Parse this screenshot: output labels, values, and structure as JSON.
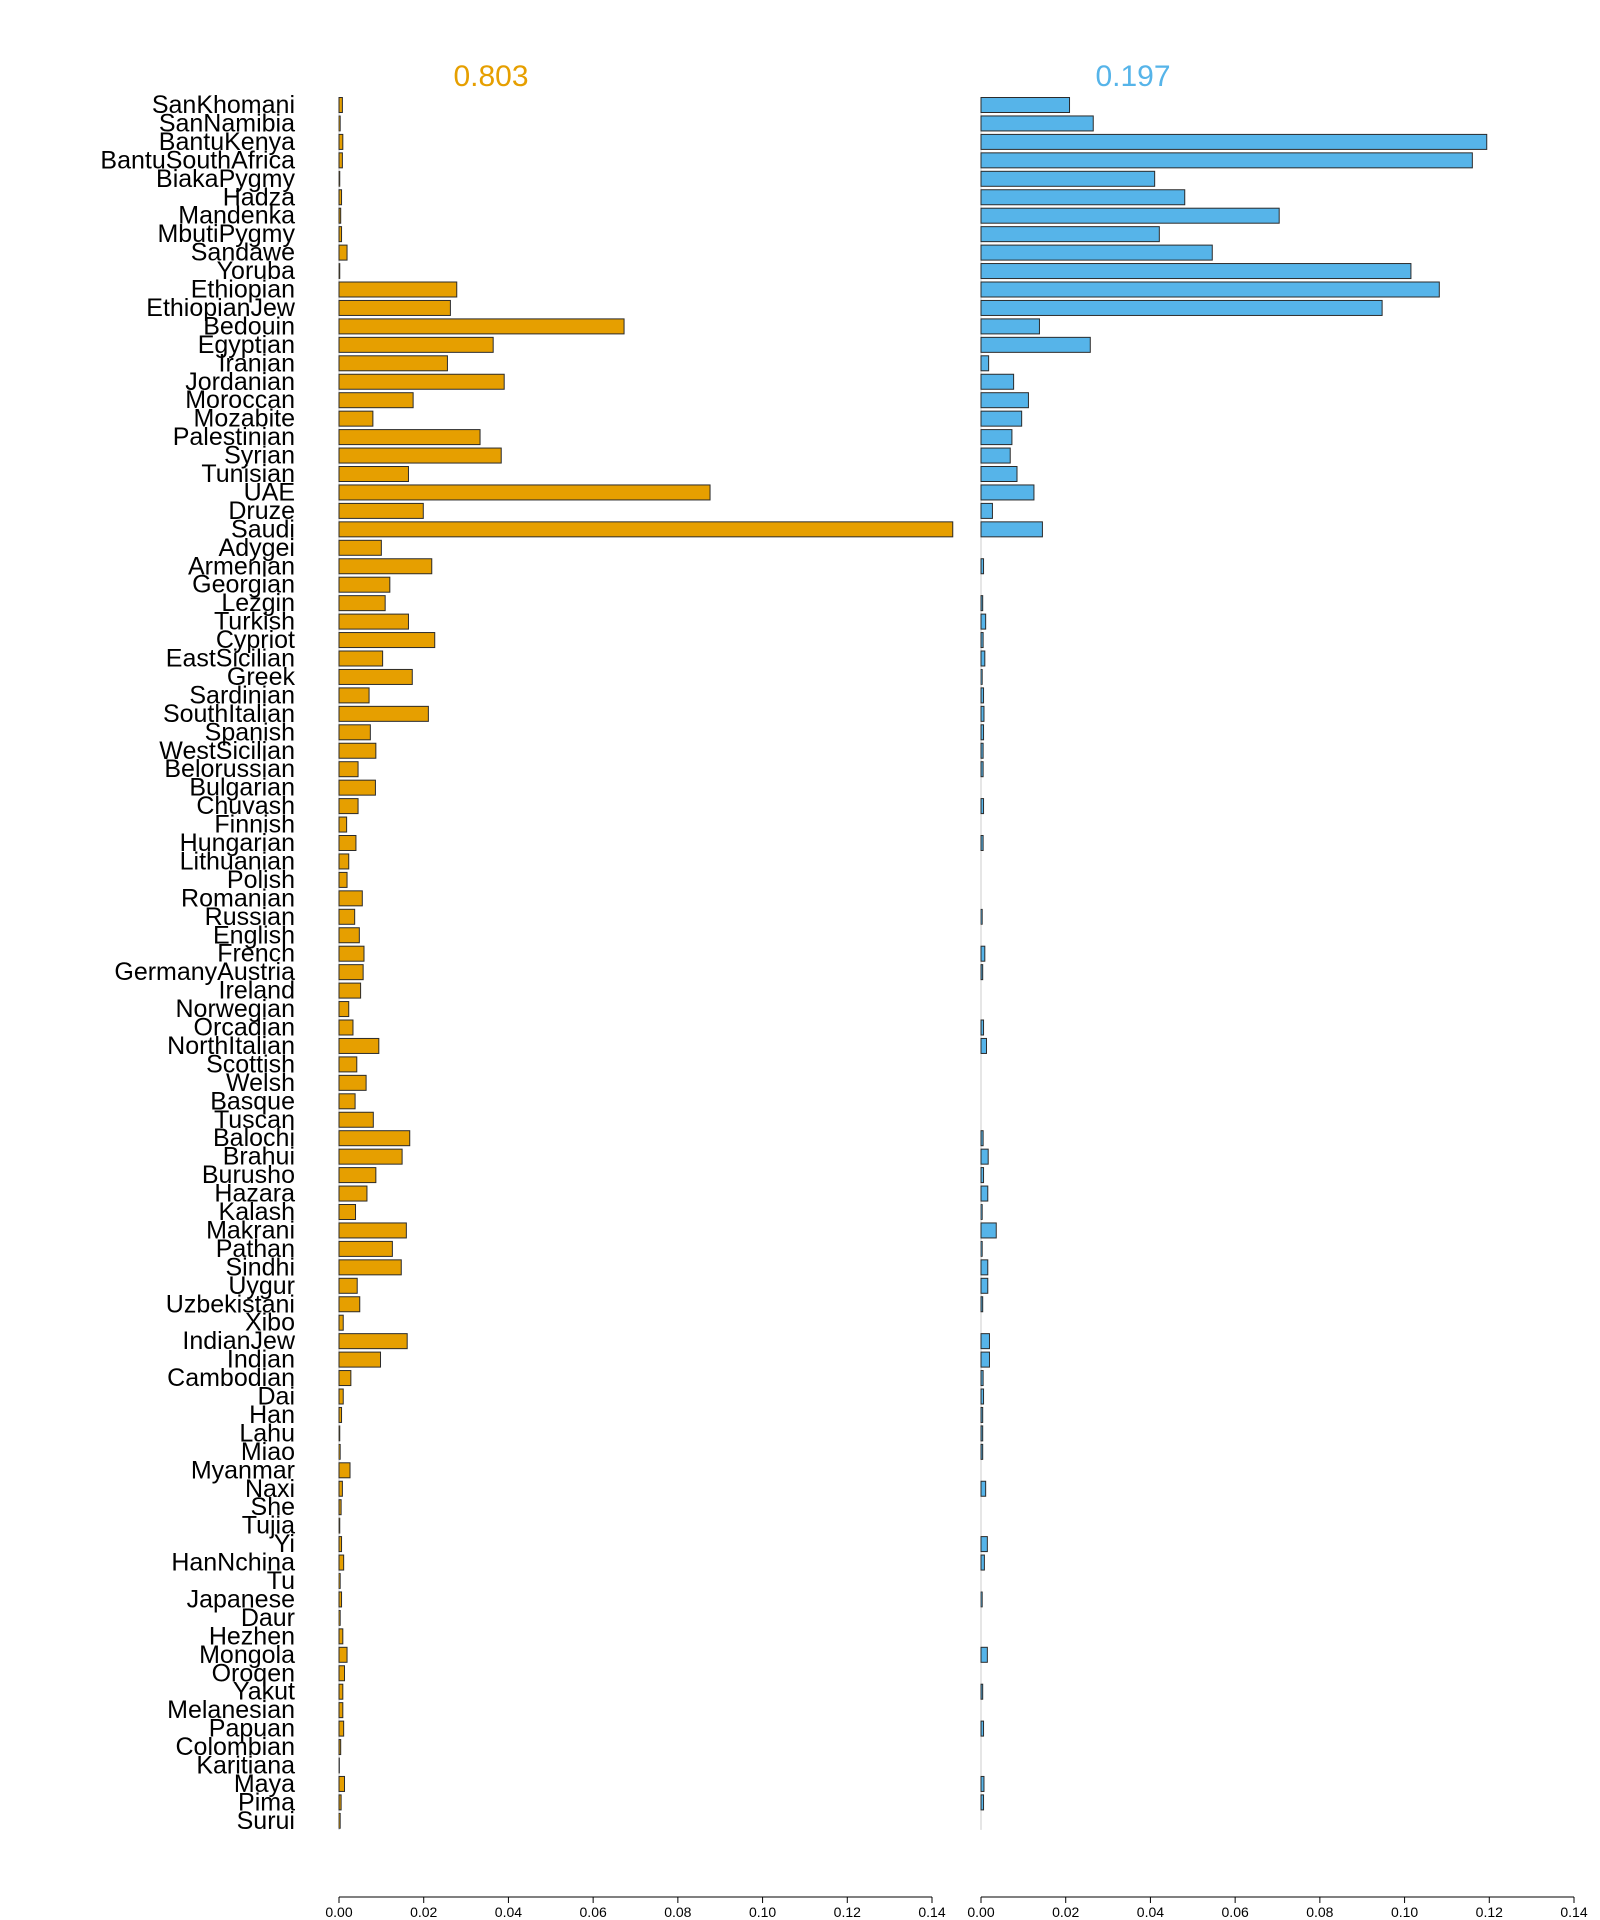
{
  "chart_data": {
    "type": "bar",
    "orientation": "horizontal",
    "categories": [
      "SanKhomani",
      "SanNamibia",
      "BantuKenya",
      "BantuSouthAfrica",
      "BiakaPygmy",
      "Hadza",
      "Mandenka",
      "MbutiPygmy",
      "Sandawe",
      "Yoruba",
      "Ethiopian",
      "EthiopianJew",
      "Bedouin",
      "Egyptian",
      "Iranian",
      "Jordanian",
      "Moroccan",
      "Mozabite",
      "Palestinian",
      "Syrian",
      "Tunisian",
      "UAE",
      "Druze",
      "Saudi",
      "Adygei",
      "Armenian",
      "Georgian",
      "Lezgin",
      "Turkish",
      "Cypriot",
      "EastSicilian",
      "Greek",
      "Sardinian",
      "SouthItalian",
      "Spanish",
      "WestSicilian",
      "Belorussian",
      "Bulgarian",
      "Chuvash",
      "Finnish",
      "Hungarian",
      "Lithuanian",
      "Polish",
      "Romanian",
      "Russian",
      "English",
      "French",
      "GermanyAustria",
      "Ireland",
      "Norwegian",
      "Orcadian",
      "NorthItalian",
      "Scottish",
      "Welsh",
      "Basque",
      "Tuscan",
      "Balochi",
      "Brahui",
      "Burusho",
      "Hazara",
      "Kalash",
      "Makrani",
      "Pathan",
      "Sindhi",
      "Uygur",
      "Uzbekistani",
      "Xibo",
      "IndianJew",
      "Indian",
      "Cambodian",
      "Dai",
      "Han",
      "Lahu",
      "Miao",
      "Myanmar",
      "Naxi",
      "She",
      "Tujia",
      "Yi",
      "HanNchina",
      "Tu",
      "Japanese",
      "Daur",
      "Hezhen",
      "Mongola",
      "Oroqen",
      "Yakut",
      "Melanesian",
      "Papuan",
      "Colombian",
      "Karitiana",
      "Maya",
      "Pima",
      "Surui"
    ],
    "series": [
      {
        "name": "0.803",
        "color": "#E69F00",
        "values": [
          0.0008,
          0.0003,
          0.0009,
          0.0008,
          0.0002,
          0.0006,
          0.0004,
          0.0006,
          0.0019,
          0.0002,
          0.0278,
          0.0263,
          0.0673,
          0.0364,
          0.0256,
          0.039,
          0.0175,
          0.008,
          0.0333,
          0.0383,
          0.0164,
          0.0876,
          0.0199,
          0.1449,
          0.01,
          0.0219,
          0.012,
          0.0109,
          0.0164,
          0.0226,
          0.0103,
          0.0173,
          0.0071,
          0.0211,
          0.0074,
          0.0087,
          0.0045,
          0.0086,
          0.0045,
          0.0018,
          0.004,
          0.0023,
          0.0019,
          0.0055,
          0.0037,
          0.0048,
          0.0059,
          0.0057,
          0.0051,
          0.0023,
          0.0033,
          0.0094,
          0.0042,
          0.0064,
          0.0038,
          0.0081,
          0.0167,
          0.0149,
          0.0087,
          0.0066,
          0.0039,
          0.0159,
          0.0126,
          0.0147,
          0.0043,
          0.0049,
          0.001,
          0.0161,
          0.0098,
          0.0028,
          0.001,
          0.0006,
          0.0002,
          0.0003,
          0.0026,
          0.0008,
          0.0005,
          0.0002,
          0.0006,
          0.0011,
          0.0003,
          0.0006,
          0.0003,
          0.0009,
          0.0019,
          0.0013,
          0.0009,
          0.0009,
          0.0011,
          0.0004,
          0.0001,
          0.0013,
          0.0005,
          0.0003
        ]
      },
      {
        "name": "0.197",
        "color": "#56B4E9",
        "values": [
          0.0209,
          0.0265,
          0.1194,
          0.116,
          0.041,
          0.0481,
          0.0704,
          0.0421,
          0.0546,
          0.1015,
          0.1082,
          0.0947,
          0.0138,
          0.0258,
          0.0018,
          0.0077,
          0.0112,
          0.0096,
          0.0073,
          0.0069,
          0.0085,
          0.0125,
          0.0027,
          0.0145,
          0.0,
          0.0006,
          0.0,
          0.0004,
          0.0011,
          0.0005,
          0.0009,
          0.0003,
          0.0006,
          0.0007,
          0.0006,
          0.0005,
          0.0005,
          0.0,
          0.0006,
          0.0,
          0.0005,
          0.0,
          0.0,
          0.0,
          0.0003,
          0.0,
          0.0009,
          0.0004,
          0.0,
          0.0,
          0.0006,
          0.0013,
          0.0,
          0.0,
          0.0,
          0.0,
          0.0005,
          0.0017,
          0.0006,
          0.0016,
          0.0003,
          0.0036,
          0.0003,
          0.0016,
          0.0016,
          0.0004,
          0.0,
          0.002,
          0.002,
          0.0005,
          0.0006,
          0.0004,
          0.0004,
          0.0004,
          0.0,
          0.0011,
          0.0,
          0.0,
          0.0015,
          0.0008,
          0.0,
          0.0003,
          0.0,
          0.0,
          0.0015,
          0.0,
          0.0004,
          0.0,
          0.0006,
          0.0,
          0.0,
          0.0007,
          0.0006,
          0.0
        ]
      }
    ],
    "panels": [
      {
        "title": "0.803",
        "series": 0,
        "xlim": [
          0,
          0.14
        ]
      },
      {
        "title": "0.197",
        "series": 1,
        "xlim": [
          0,
          0.14
        ]
      }
    ],
    "xticks": [
      "0.00",
      "0.02",
      "0.04",
      "0.06",
      "0.08",
      "0.10",
      "0.12",
      "0.14"
    ],
    "xtick_values": [
      0,
      0.02,
      0.04,
      0.06,
      0.08,
      0.1,
      0.12,
      0.14
    ],
    "xlabel": "",
    "ylabel": "",
    "grid": false,
    "legend": "none"
  }
}
